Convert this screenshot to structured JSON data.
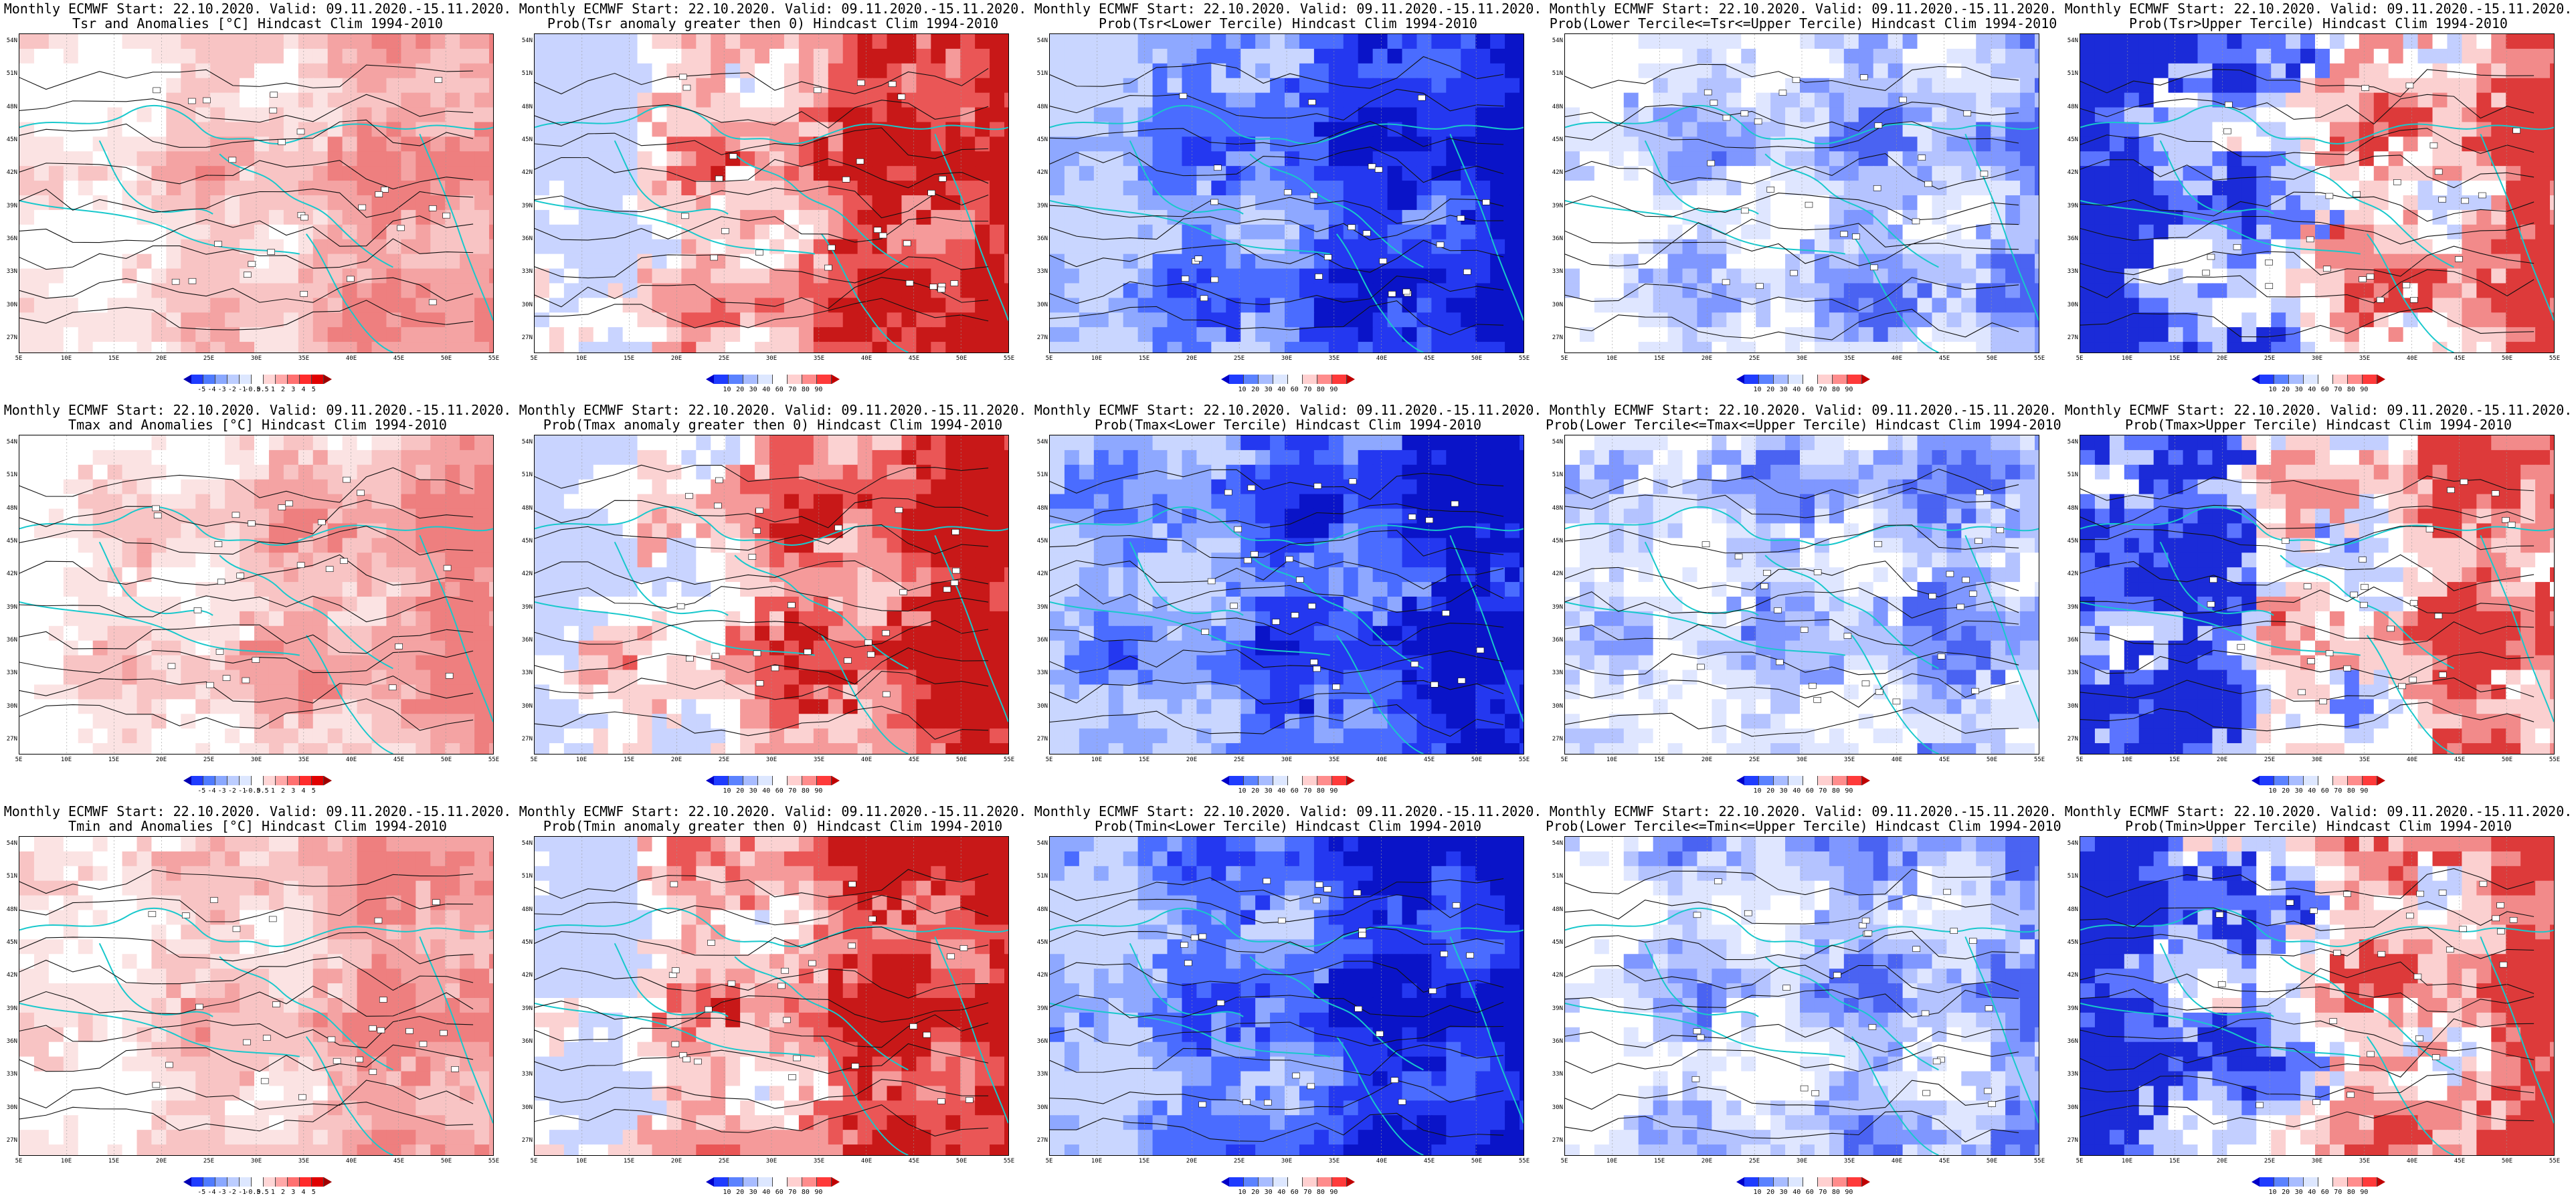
{
  "header_line": "Monthly ECMWF Start: 22.10.2020. Valid: 09.11.2020.-15.11.2020.",
  "lat_labels": [
    "54N",
    "51N",
    "48N",
    "45N",
    "42N",
    "39N",
    "36N",
    "33N",
    "30N",
    "27N"
  ],
  "lon_labels": [
    "5E",
    "10E",
    "15E",
    "20E",
    "25E",
    "30E",
    "35E",
    "40E",
    "45E",
    "50E",
    "55E"
  ],
  "colorbars": {
    "anomaly": {
      "labels": [
        "-5",
        "-4",
        "-3",
        "-2",
        "-1",
        "-0.5",
        "0.5",
        "1",
        "2",
        "3",
        "4",
        "5"
      ],
      "colors": [
        "#0000b4",
        "#1f3cff",
        "#4f7bff",
        "#8aa8ff",
        "#bccdff",
        "#dde7ff",
        "#ffffff",
        "#ffd6d6",
        "#ffa8a8",
        "#ff7070",
        "#ff2c2c",
        "#e00000",
        "#a00000"
      ]
    },
    "probability": {
      "labels": [
        "10",
        "20",
        "30",
        "40",
        "60",
        "70",
        "80",
        "90"
      ],
      "colors": [
        "#0000c8",
        "#1f3cff",
        "#5b82ff",
        "#a8bcff",
        "#dde7ff",
        "#ffffff",
        "#ffd0d0",
        "#ff8c8c",
        "#ff3a3a",
        "#c00000"
      ]
    }
  },
  "panels": [
    {
      "subtitle": "Tsr and Anomalies [°C] Hindcast Clim 1994-2010",
      "bar": "anomaly",
      "scheme": "anom",
      "seed": 11
    },
    {
      "subtitle": "Prob(Tsr anomaly greater then 0) Hindcast Clim 1994-2010",
      "bar": "probability",
      "scheme": "warmprob",
      "seed": 23
    },
    {
      "subtitle": "Prob(Tsr<Lower Tercile) Hindcast Clim 1994-2010",
      "bar": "probability",
      "scheme": "cold",
      "seed": 37
    },
    {
      "subtitle": "Prob(Lower Tercile<=Tsr<=Upper Tercile) Hindcast Clim 1994-2010",
      "bar": "probability",
      "scheme": "mid",
      "seed": 41
    },
    {
      "subtitle": "Prob(Tsr>Upper Tercile) Hindcast Clim 1994-2010",
      "bar": "probability",
      "scheme": "upper",
      "seed": 53
    },
    {
      "subtitle": "Tmax and Anomalies [°C] Hindcast Clim 1994-2010",
      "bar": "anomaly",
      "scheme": "anom",
      "seed": 61
    },
    {
      "subtitle": "Prob(Tmax anomaly greater then 0) Hindcast Clim 1994-2010",
      "bar": "probability",
      "scheme": "warmprob",
      "seed": 71
    },
    {
      "subtitle": "Prob(Tmax<Lower Tercile) Hindcast Clim 1994-2010",
      "bar": "probability",
      "scheme": "cold",
      "seed": 83
    },
    {
      "subtitle": "Prob(Lower Tercile<=Tmax<=Upper Tercile) Hindcast Clim 1994-2010",
      "bar": "probability",
      "scheme": "mid",
      "seed": 97
    },
    {
      "subtitle": "Prob(Tmax>Upper Tercile) Hindcast Clim 1994-2010",
      "bar": "probability",
      "scheme": "upper",
      "seed": 101
    },
    {
      "subtitle": "Tmin and Anomalies [°C] Hindcast Clim 1994-2010",
      "bar": "anomaly",
      "scheme": "anom",
      "seed": 113
    },
    {
      "subtitle": "Prob(Tmin anomaly greater then 0) Hindcast Clim 1994-2010",
      "bar": "probability",
      "scheme": "warmprob",
      "seed": 127
    },
    {
      "subtitle": "Prob(Tmin<Lower Tercile) Hindcast Clim 1994-2010",
      "bar": "probability",
      "scheme": "cold",
      "seed": 131
    },
    {
      "subtitle": "Prob(Lower Tercile<=Tmin<=Upper Tercile) Hindcast Clim 1994-2010",
      "bar": "probability",
      "scheme": "mid",
      "seed": 149
    },
    {
      "subtitle": "Prob(Tmin>Upper Tercile) Hindcast Clim 1994-2010",
      "bar": "probability",
      "scheme": "upper",
      "seed": 157
    }
  ]
}
